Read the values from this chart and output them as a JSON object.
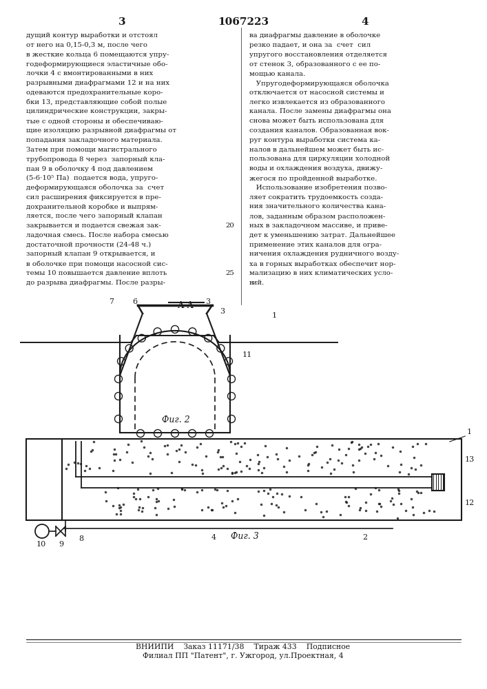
{
  "page_number_left": "3",
  "patent_number": "1067223",
  "page_number_right": "4",
  "background_color": "#ffffff",
  "text_color": "#1a1a1a",
  "line_color": "#1a1a1a",
  "left_column_lines": [
    "дущий контур выработки и отстоял",
    "от него на 0,15-0,3 м, после чего",
    "в жесткие кольца 6 помещаются упру-",
    "годеформирующиеся эластичные обо-",
    "лочки 4 с вмонтированными в них",
    "разрывными диафрагмами 12 и на них",
    "одеваются предохранительные коро-",
    "бки 13, представляющие собой полые",
    "цилиндрические конструкции, закры-",
    "тые с одной стороны и обеспечиваю-",
    "щие изоляцию разрывной диафрагмы от",
    "попадания закладочного материала.",
    "Затем при помощи магистрального",
    "трубопровода 8 через  запорный кла-",
    "пан 9 в оболочку 4 под давлением",
    "(5-6·10⁵ Па)  подается вода, упруго-",
    "деформирующаяся оболочка за  счет",
    "сил расширения фиксируется в пре-",
    "дохранительной коробке и выпрям-",
    "ляется, после чего запорный клапан",
    "закрывается и подается свежая зак-",
    "ладочная смесь. После набора смесью",
    "достаточной прочности (24-48 ч.)",
    "запорный клапан 9 открывается, и",
    "в оболочке при помощи насосной сис-",
    "темы 10 повышается давление вплоть",
    "до разрыва диафрагмы. После разры-"
  ],
  "right_column_lines": [
    "ва диафрагмы давление в оболочке",
    "резко падает, и она за  счет  сил",
    "упругого восстановления отделяется",
    "от стенок 3, образованного с ее по-",
    "мощью канала.",
    "   Упругодеформирующаяся оболочка",
    "отключается от насосной системы и",
    "легко извлекается из образованного",
    "канала. После замены диафрагмы она",
    "снова может быть использована для",
    "создания каналов. Образованная вок-",
    "руг контура выработки система ка-",
    "налов в дальнейшем может быть ис-",
    "пользована для циркуляции холодной",
    "воды и охлаждения воздуха, движу-",
    "жегося по пройденной выработке.",
    "   Использование изобретения позво-",
    "ляет сократить трудоемкость созда-",
    "ния значительного количества кана-",
    "лов, заданным образом расположен-",
    "ных в закладочном массиве, и приве-",
    "дет к уменьшению затрат. Дальнейшее",
    "применение этих каналов для огра-",
    "ничения охлаждения рудничного возду-",
    "ха в горных выработках обеспечит нор-",
    "мализацию в них климатических усло-",
    "вий."
  ],
  "right_line_numbers": [
    null,
    null,
    null,
    null,
    null,
    null,
    null,
    null,
    null,
    null,
    null,
    null,
    null,
    null,
    null,
    null,
    null,
    null,
    null,
    null,
    "20",
    null,
    null,
    null,
    null,
    "25",
    null
  ],
  "fig2_caption": "Фиг. 2",
  "fig3_caption": "Фиг. 3",
  "section_label": "А-А",
  "footer_line1": "ВНИИПИ    Заказ 11171/38    Тираж 433    Подписное",
  "footer_line2": "Филиал ПП \"Патент\", г. Ужгород, ул.Проектная, 4"
}
